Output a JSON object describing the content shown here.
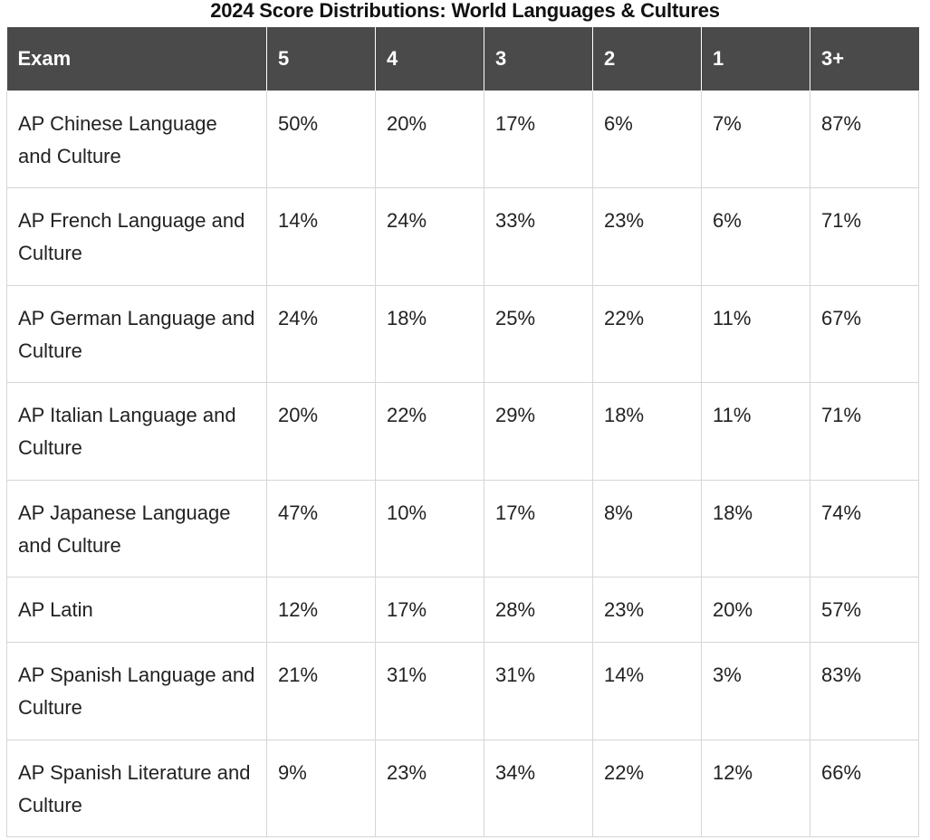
{
  "title": "2024 Score Distributions: World Languages & Cultures",
  "table": {
    "headers": [
      "Exam",
      "5",
      "4",
      "3",
      "2",
      "1",
      "3+"
    ],
    "rows": [
      {
        "exam": "AP Chinese Language and Culture",
        "s5": "50%",
        "s4": "20%",
        "s3": "17%",
        "s2": "6%",
        "s1": "7%",
        "s3plus": "87%"
      },
      {
        "exam": "AP French Language and Culture",
        "s5": "14%",
        "s4": "24%",
        "s3": "33%",
        "s2": "23%",
        "s1": "6%",
        "s3plus": "71%"
      },
      {
        "exam": "AP German Language and Culture",
        "s5": "24%",
        "s4": "18%",
        "s3": "25%",
        "s2": "22%",
        "s1": "11%",
        "s3plus": "67%"
      },
      {
        "exam": "AP Italian Language and Culture",
        "s5": "20%",
        "s4": "22%",
        "s3": "29%",
        "s2": "18%",
        "s1": "11%",
        "s3plus": "71%"
      },
      {
        "exam": "AP Japanese Language and Culture",
        "s5": "47%",
        "s4": "10%",
        "s3": "17%",
        "s2": "8%",
        "s1": "18%",
        "s3plus": "74%"
      },
      {
        "exam": "AP Latin",
        "s5": "12%",
        "s4": "17%",
        "s3": "28%",
        "s2": "23%",
        "s1": "20%",
        "s3plus": "57%"
      },
      {
        "exam": "AP Spanish Language and Culture",
        "s5": "21%",
        "s4": "31%",
        "s3": "31%",
        "s2": "14%",
        "s1": "3%",
        "s3plus": "83%"
      },
      {
        "exam": "AP Spanish Literature and Culture",
        "s5": "9%",
        "s4": "23%",
        "s3": "34%",
        "s2": "22%",
        "s1": "12%",
        "s3plus": "66%"
      }
    ]
  },
  "colors": {
    "header_bg": "#4a4a4a",
    "header_text": "#ffffff",
    "grid": "#d6d6d6",
    "text": "#222222"
  }
}
